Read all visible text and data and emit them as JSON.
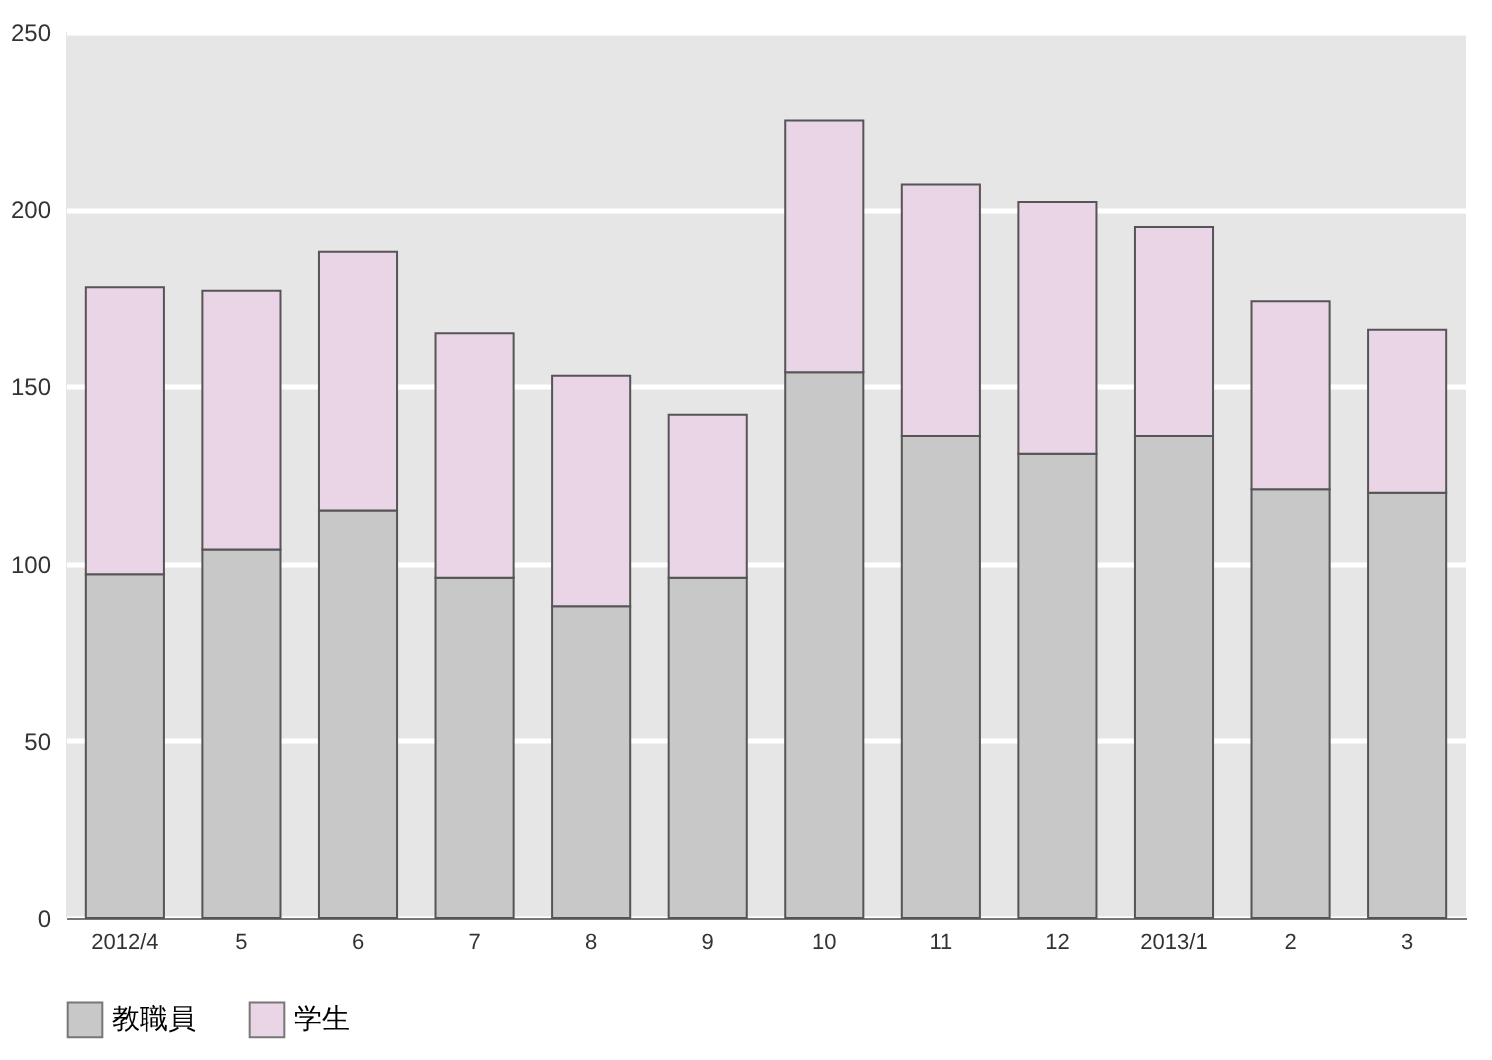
{
  "chart_data": {
    "type": "bar",
    "stacked": true,
    "categories": [
      "2012/4",
      "5",
      "6",
      "7",
      "8",
      "9",
      "10",
      "11",
      "12",
      "2013/1",
      "2",
      "3"
    ],
    "series": [
      {
        "name": "教職員",
        "color": "#c8c8c8",
        "values": [
          97,
          104,
          115,
          96,
          88,
          96,
          154,
          136,
          131,
          136,
          121,
          120
        ]
      },
      {
        "name": "学生",
        "color": "#ead5e6",
        "values": [
          81,
          73,
          73,
          69,
          65,
          46,
          71,
          71,
          71,
          59,
          53,
          46
        ]
      }
    ],
    "ylim": [
      0,
      250
    ],
    "yticks": [
      0,
      50,
      100,
      150,
      200,
      250
    ],
    "grid": "y",
    "legend": "bottom"
  }
}
